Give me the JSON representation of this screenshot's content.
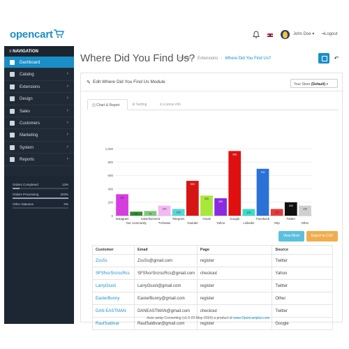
{
  "header": {
    "logo": "opencart",
    "user_name": "John Doe",
    "logout": "Logout"
  },
  "sidebar": {
    "nav_title": "NAVIGATION",
    "items": [
      {
        "label": "Dashboard",
        "icon": "home-icon",
        "active": true
      },
      {
        "label": "Catalog",
        "icon": "tag-icon"
      },
      {
        "label": "Extensions",
        "icon": "puzzle-icon"
      },
      {
        "label": "Design",
        "icon": "desktop-icon"
      },
      {
        "label": "Sales",
        "icon": "cart-icon"
      },
      {
        "label": "Customers",
        "icon": "user-icon"
      },
      {
        "label": "Marketing",
        "icon": "share-icon"
      },
      {
        "label": "System",
        "icon": "cog-icon"
      },
      {
        "label": "Reports",
        "icon": "bar-chart-icon"
      }
    ],
    "stats": [
      {
        "label": "Orders Completed",
        "percent": "13%",
        "value": 0.13
      },
      {
        "label": "Orders Processing",
        "percent": "203%",
        "value": 1.0
      },
      {
        "label": "Other Statuses",
        "percent": "0%",
        "value": 0
      }
    ]
  },
  "page": {
    "title": "Where Did You Find Us?",
    "breadcrumbs": [
      "Home",
      "Extensions",
      "Where Did You Find Us?"
    ]
  },
  "panel": {
    "title": "Edit Where Did You Find Us Module",
    "store_prefix": "Your Store",
    "store_default": "(Default)",
    "tabs": [
      "Chart & Report",
      "Setting",
      "License info"
    ]
  },
  "actions": {
    "view_more": "View More",
    "export_csv": "Export to CSV"
  },
  "chart_data": {
    "type": "bar",
    "categories": [
      "Instagram",
      "Our community",
      "Advertisement",
      "TV/News",
      "Telegram",
      "Youtube",
      "Gmail",
      "Yahoo",
      "Google",
      "Linkedin",
      "Facebook",
      "Yelp",
      "Twitter",
      "Other"
    ],
    "values": [
      320,
      60,
      70,
      150,
      100,
      520,
      300,
      260,
      965,
      100,
      700,
      100,
      200,
      150
    ],
    "colors": [
      "#d63de0",
      "#2e8b2e",
      "#7cc97c",
      "#f5b7f5",
      "#58d6d6",
      "#d61515",
      "#a8e83a",
      "#8a2be2",
      "#e01010",
      "#3adcc8",
      "#2a72d6",
      "#e83a3a",
      "#111111",
      "#cfcfcf"
    ],
    "ylim": [
      0,
      1000
    ],
    "yticks": [
      0,
      200,
      400,
      600,
      800,
      "1,000"
    ]
  },
  "table": {
    "columns": [
      "Customer",
      "Email",
      "Page",
      "Source"
    ],
    "rows": [
      [
        "ZssSs",
        "ZssSs@gmail.com",
        "register",
        "Twitter"
      ],
      [
        "SFSfvsrSrcrscRcs",
        "SFSfvsrSrcrscRcs@gmail.com",
        "checkout",
        "Yahoo"
      ],
      [
        "LarryGiusti",
        "LarryGiusti@gmail.com",
        "register",
        "Twitter"
      ],
      [
        "EasterBunny",
        "EasterBunny@gmail.com",
        "register",
        "Other"
      ],
      [
        "DAN EASTMAN",
        "DANEASTMAN@gmail.com",
        "checkout",
        "Twitter"
      ],
      [
        "RaulSaldivar",
        "RaulSaldivar@gmail.com",
        "register",
        "Google"
      ]
    ]
  },
  "footer": {
    "text": "Auto webp Converting (v1.0-22-May-2024) a product of",
    "link": "www.Opencartplus.com"
  }
}
